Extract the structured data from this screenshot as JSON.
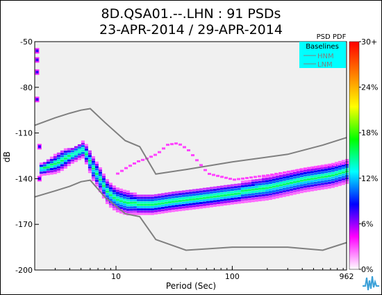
{
  "chart_data": {
    "type": "heatmap",
    "title_line1": "8D.QSA01.--.LHN : 91 PSDs",
    "title_line2": "23-APR-2014 / 29-APR-2014",
    "xlabel": "Period (Sec)",
    "ylabel": "dB",
    "x_scale": "log",
    "xlim": [
      2,
      962
    ],
    "ylim": [
      -200,
      -50
    ],
    "x_ticks": [
      {
        "value": 10,
        "label": "10"
      },
      {
        "value": 100,
        "label": "100"
      },
      {
        "value": 962,
        "label": "962"
      }
    ],
    "y_ticks": [
      {
        "value": -50,
        "label": "-50"
      },
      {
        "value": -80,
        "label": "-80"
      },
      {
        "value": -110,
        "label": "-110"
      },
      {
        "value": -140,
        "label": "-140"
      },
      {
        "value": -170,
        "label": "-170"
      },
      {
        "value": -200,
        "label": "-200"
      }
    ],
    "grid": false,
    "legend": {
      "title": "Baselines",
      "position": "top-right",
      "background": "#00ffff",
      "entries": [
        {
          "name": "HNM",
          "color": "#7f7f7f"
        },
        {
          "name": "LNM",
          "color": "#7f7f7f"
        }
      ]
    },
    "colorbar": {
      "title": "PSD PDF",
      "ticks": [
        "30+",
        "24%",
        "18%",
        "12%",
        "6%",
        "0%"
      ],
      "colors": [
        "#ff0000",
        "#ff7f00",
        "#ffff00",
        "#00ff00",
        "#00ffff",
        "#0000ff",
        "#ff00ff",
        "#ffffff"
      ]
    },
    "series": [
      {
        "name": "HNM",
        "x": [
          2,
          3,
          4,
          5,
          6,
          8,
          12,
          16,
          22,
          40,
          100,
          300,
          600,
          962
        ],
        "y": [
          -105,
          -100,
          -97,
          -95,
          -94,
          -103,
          -115,
          -119,
          -137,
          -134,
          -129,
          -124,
          -118,
          -113
        ]
      },
      {
        "name": "LNM",
        "x": [
          2,
          3,
          4,
          5,
          6,
          8,
          12,
          16,
          22,
          40,
          100,
          300,
          600,
          962
        ],
        "y": [
          -152,
          -148,
          -145,
          -142,
          -141,
          -152,
          -163,
          -165,
          -180,
          -187,
          -185,
          -185,
          -187,
          -182
        ]
      }
    ],
    "psd_band": {
      "x": [
        2.2,
        2.6,
        3,
        3.5,
        4,
        4.5,
        5,
        5.5,
        6,
        6.5,
        7,
        8,
        9,
        10,
        12,
        15,
        20,
        30,
        50,
        100,
        200,
        400,
        700,
        962
      ],
      "median": [
        -133,
        -131,
        -129,
        -126,
        -124,
        -122,
        -120,
        -124,
        -131,
        -135,
        -139,
        -147,
        -151,
        -153,
        -155,
        -156,
        -156,
        -154,
        -152,
        -149,
        -145,
        -140,
        -137,
        -134
      ],
      "spread": [
        3,
        4,
        5,
        5,
        4,
        4,
        4,
        5,
        6,
        6,
        6,
        6,
        6,
        6,
        6,
        5,
        5,
        5,
        5,
        5,
        6,
        6,
        6,
        6
      ]
    },
    "psd_upper_branch": {
      "x": [
        10,
        12,
        15,
        18,
        22,
        27,
        33,
        40,
        60,
        100,
        200,
        400,
        962
      ],
      "y": [
        -136,
        -132,
        -128,
        -126,
        -123,
        -117,
        -116,
        -120,
        -136,
        -140,
        -137,
        -133,
        -129
      ]
    },
    "outlier_clusters": [
      {
        "x": 2.1,
        "y": [
          -70,
          -62,
          -56,
          -88
        ]
      },
      {
        "x": 2.2,
        "y": [
          -119,
          -140
        ]
      }
    ]
  }
}
